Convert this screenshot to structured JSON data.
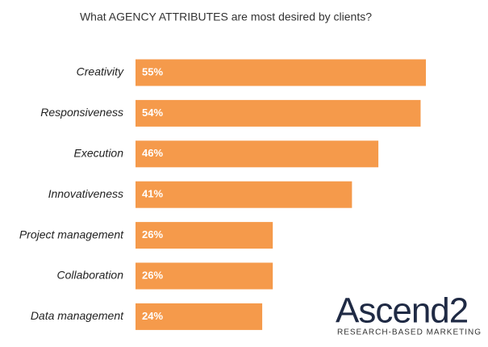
{
  "chart_data": {
    "type": "bar",
    "orientation": "horizontal",
    "title": "What AGENCY ATTRIBUTES are most desired by clients?",
    "categories": [
      "Creativity",
      "Responsiveness",
      "Execution",
      "Innovativeness",
      "Project management",
      "Collaboration",
      "Data management"
    ],
    "values": [
      55,
      54,
      46,
      41,
      26,
      26,
      24
    ],
    "value_labels": [
      "55%",
      "54%",
      "46%",
      "41%",
      "26%",
      "26%",
      "24%"
    ],
    "color": "#f59a4b"
  },
  "logo": {
    "name": "Ascend2",
    "tagline": "RESEARCH-BASED MARKETING"
  }
}
